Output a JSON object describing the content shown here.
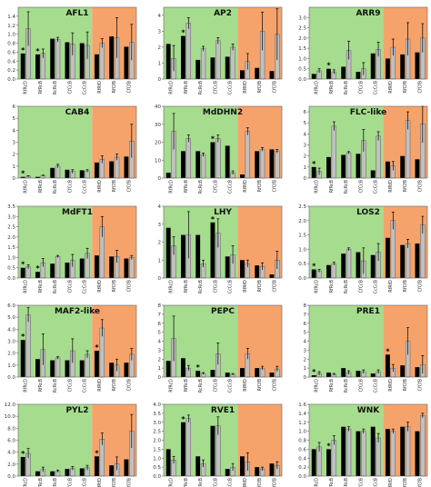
{
  "colors": {
    "bg_green": "#a6dc8e",
    "bg_orange": "#f6a36b",
    "bar_black": "#000000",
    "bar_gray": "#c0c0c0",
    "axis_text": "#333333",
    "title": "#111111"
  },
  "chart_data": [
    {
      "type": "bar",
      "title": "AFL1",
      "ylim": [
        0,
        1.6
      ],
      "yticks": [
        "0.0",
        "0.2",
        "0.4",
        "0.6",
        "0.8",
        "1.0",
        "1.2",
        "1.4"
      ],
      "categories": [
        "RfRcD",
        "RfRcB",
        "RcRcB",
        "CfCcB",
        "CcCcB",
        "RfRfD",
        "RfCfB",
        "CfCfB"
      ],
      "series": [
        {
          "values": [
            0.57,
            0.55,
            0.9,
            0.82,
            0.8,
            0.55,
            0.95,
            0.72
          ]
        },
        {
          "values": [
            1.12,
            0.57,
            0.88,
            0.78,
            0.75,
            0.8,
            0.92,
            0.82
          ]
        }
      ],
      "errors": [
        [
          0,
          0,
          0,
          0,
          0,
          0,
          0,
          0
        ],
        [
          0.38,
          0.1,
          0.05,
          0.25,
          0.3,
          0.1,
          0.45,
          0.4
        ]
      ],
      "marks": [
        "*",
        "*",
        "",
        "",
        "",
        "",
        "",
        ""
      ],
      "orange_from": 5
    },
    {
      "type": "bar",
      "title": "AP2",
      "ylim": [
        0,
        4.5
      ],
      "yticks": [
        "0",
        "1",
        "2",
        "3",
        "4"
      ],
      "categories": [
        "RfRcD",
        "RfRcB",
        "RcRcB",
        "CfCcB",
        "CcCcB",
        "RfRfD",
        "RfCfB",
        "CfCfB"
      ],
      "series": [
        {
          "values": [
            2.2,
            2.7,
            1.2,
            1.35,
            1.4,
            0.55,
            0.7,
            0.5
          ]
        },
        {
          "values": [
            1.3,
            3.5,
            1.9,
            2.4,
            2.0,
            1.1,
            3.0,
            2.8
          ]
        }
      ],
      "errors": [
        [
          0,
          0,
          0,
          0,
          0,
          0,
          0,
          0
        ],
        [
          0.8,
          0.35,
          0.15,
          0.2,
          0.2,
          0.5,
          1.2,
          1.6
        ]
      ],
      "marks": [
        "",
        "*",
        "",
        "",
        "",
        "",
        "",
        ""
      ],
      "orange_from": 5
    },
    {
      "type": "bar",
      "title": "ARR9",
      "ylim": [
        0,
        3.5
      ],
      "yticks": [
        "0.0",
        "0.5",
        "1.0",
        "1.5",
        "2.0",
        "2.5",
        "3.0"
      ],
      "categories": [
        "RfRcD",
        "RfRcB",
        "RcRcB",
        "CfCcB",
        "CcCcB",
        "RfRfD",
        "RfCfB",
        "CfCfB"
      ],
      "series": [
        {
          "values": [
            0.25,
            0.5,
            0.6,
            0.35,
            1.25,
            1.0,
            1.2,
            1.3
          ]
        },
        {
          "values": [
            0.4,
            0.35,
            1.4,
            0.5,
            1.45,
            1.55,
            1.95,
            2.0
          ]
        }
      ],
      "errors": [
        [
          0,
          0,
          0,
          0,
          0,
          0,
          0,
          0
        ],
        [
          0.1,
          0.1,
          0.45,
          0.3,
          0.35,
          0.4,
          0.8,
          0.7
        ]
      ],
      "marks": [
        "",
        "*",
        "",
        "",
        "",
        "",
        "",
        ""
      ],
      "orange_from": 5
    },
    {
      "type": "bar",
      "title": "CAB4",
      "ylim": [
        0,
        6
      ],
      "yticks": [
        "0",
        "1",
        "2",
        "3",
        "4",
        "5",
        "6"
      ],
      "categories": [
        "RfRcD",
        "RfRcB",
        "RcRcB",
        "CfCcB",
        "CcCcB",
        "RfRfD",
        "RfCfB",
        "CfCfB"
      ],
      "series": [
        {
          "values": [
            0.1,
            0.1,
            0.85,
            0.7,
            0.65,
            1.3,
            1.4,
            1.8
          ]
        },
        {
          "values": [
            0.15,
            0.2,
            1.0,
            0.55,
            0.6,
            1.55,
            1.75,
            3.1
          ]
        }
      ],
      "errors": [
        [
          0,
          0,
          0,
          0,
          0,
          0,
          0,
          0
        ],
        [
          0.05,
          0.05,
          0.15,
          0.15,
          0.1,
          0.3,
          0.25,
          1.4
        ]
      ],
      "marks": [
        "*",
        "",
        "",
        "",
        "",
        "",
        "",
        ""
      ],
      "orange_from": 5
    },
    {
      "type": "bar",
      "title": "MdDHN2",
      "ylim": [
        0,
        40
      ],
      "yticks": [
        "0",
        "10",
        "20",
        "30",
        "40"
      ],
      "categories": [
        "RfRcD",
        "RfRcB",
        "RcRcB",
        "CfCcB",
        "CcCcB",
        "RfRfD",
        "RfCfB",
        "CfCfB"
      ],
      "series": [
        {
          "values": [
            3.0,
            15.0,
            15.0,
            20.0,
            18.0,
            2.0,
            15.0,
            16.0
          ]
        },
        {
          "values": [
            26.0,
            22.0,
            13.0,
            22.0,
            3.0,
            26.0,
            16.0,
            15.0
          ]
        }
      ],
      "errors": [
        [
          0,
          0,
          0,
          0,
          0,
          0,
          0,
          0
        ],
        [
          10.0,
          2.0,
          1.0,
          2.0,
          1.0,
          2.0,
          1.0,
          1.0
        ]
      ],
      "marks": [
        "",
        "",
        "",
        "*",
        "",
        "",
        "",
        ""
      ],
      "orange_from": 5
    },
    {
      "type": "bar",
      "title": "FLC-like",
      "ylim": [
        0,
        6.5
      ],
      "yticks": [
        "0",
        "1",
        "2",
        "3",
        "4",
        "5",
        "6"
      ],
      "categories": [
        "RfRcD",
        "RfRcB",
        "RcRcB",
        "CfCcB",
        "CcCcB",
        "RfRfD",
        "RfCfB",
        "CfCfB"
      ],
      "series": [
        {
          "values": [
            1.0,
            1.9,
            2.1,
            2.2,
            0.7,
            1.5,
            2.0,
            1.7
          ]
        },
        {
          "values": [
            0.6,
            4.7,
            2.3,
            3.4,
            3.8,
            1.1,
            5.2,
            4.9
          ]
        }
      ],
      "errors": [
        [
          0,
          0,
          0,
          0,
          0,
          0,
          0,
          0
        ],
        [
          0.3,
          0.4,
          0.1,
          1.0,
          0.4,
          0.4,
          0.8,
          1.7
        ]
      ],
      "marks": [
        "*",
        "",
        "",
        "",
        "",
        "",
        "",
        ""
      ],
      "orange_from": 5
    },
    {
      "type": "bar",
      "title": "MdFT1",
      "ylim": [
        0,
        3.5
      ],
      "yticks": [
        "0.0",
        "0.5",
        "1.0",
        "1.5",
        "2.0",
        "2.5",
        "3.0",
        "3.5"
      ],
      "categories": [
        "RfRcD",
        "RfRcB",
        "RcRcB",
        "CfCcB",
        "CcCcB",
        "RfRfD",
        "RfCfB",
        "CfCfB"
      ],
      "series": [
        {
          "values": [
            0.5,
            0.3,
            0.7,
            0.75,
            0.95,
            1.1,
            1.05,
            0.95
          ]
        },
        {
          "values": [
            0.55,
            0.75,
            1.05,
            0.85,
            1.2,
            2.5,
            1.05,
            1.0
          ]
        }
      ],
      "errors": [
        [
          0,
          0,
          0,
          0,
          0,
          0,
          0,
          0
        ],
        [
          0.1,
          0.2,
          0.05,
          0.3,
          0.25,
          0.5,
          0.3,
          0.1
        ]
      ],
      "marks": [
        "*",
        "*",
        "",
        "",
        "",
        "",
        "",
        ""
      ],
      "orange_from": 5
    },
    {
      "type": "bar",
      "title": "LHY",
      "ylim": [
        0,
        4
      ],
      "yticks": [
        "0",
        "1",
        "2",
        "3",
        "4"
      ],
      "categories": [
        "RfRcD",
        "RfRcB",
        "RcRcB",
        "CfCcB",
        "CcCcB",
        "RfRfD",
        "RfCfB",
        "CfCfB"
      ],
      "series": [
        {
          "values": [
            2.8,
            2.4,
            2.4,
            3.1,
            1.2,
            1.0,
            0.7,
            0.2
          ]
        },
        {
          "values": [
            1.8,
            2.4,
            0.8,
            2.5,
            1.3,
            0.8,
            0.65,
            1.0
          ]
        }
      ],
      "errors": [
        [
          0,
          0,
          0,
          0,
          0,
          0,
          0,
          0
        ],
        [
          0.5,
          1.3,
          0.2,
          0.8,
          0.5,
          0.2,
          0.2,
          0.5
        ]
      ],
      "marks": [
        "",
        "",
        "",
        "*",
        "",
        "",
        "",
        ""
      ],
      "orange_from": 5
    },
    {
      "type": "bar",
      "title": "LOS2",
      "ylim": [
        0,
        2.5
      ],
      "yticks": [
        "0.0",
        "0.5",
        "1.0",
        "1.5",
        "2.0",
        "2.5"
      ],
      "categories": [
        "RfRcD",
        "RfRcB",
        "RcRcB",
        "CfCcB",
        "CcCcB",
        "RfRfD",
        "RfCfB",
        "CfCfB"
      ],
      "series": [
        {
          "values": [
            0.3,
            0.45,
            0.85,
            0.9,
            0.8,
            1.4,
            1.15,
            1.2
          ]
        },
        {
          "values": [
            0.25,
            0.5,
            1.0,
            0.6,
            0.9,
            2.0,
            1.2,
            1.85
          ]
        }
      ],
      "errors": [
        [
          0,
          0,
          0,
          0,
          0,
          0,
          0,
          0
        ],
        [
          0.05,
          0.05,
          0.05,
          0.45,
          0.3,
          0.3,
          0.15,
          0.3
        ]
      ],
      "marks": [
        "*",
        "",
        "",
        "",
        "",
        "",
        "",
        ""
      ],
      "orange_from": 5
    },
    {
      "type": "bar",
      "title": "MAF2-like",
      "ylim": [
        0,
        6
      ],
      "yticks": [
        "0.0",
        "1.0",
        "2.0",
        "3.0",
        "4.0",
        "5.0",
        "6.0"
      ],
      "categories": [
        "RfRcD",
        "RfRcB",
        "RcRcB",
        "CfCcB",
        "CcCcB",
        "RfRfD",
        "RfCfB",
        "CfCfB"
      ],
      "series": [
        {
          "values": [
            3.1,
            1.5,
            1.4,
            1.4,
            1.4,
            2.2,
            1.2,
            1.2
          ]
        },
        {
          "values": [
            5.2,
            2.3,
            1.6,
            2.2,
            1.9,
            4.1,
            1.0,
            1.9
          ]
        }
      ],
      "errors": [
        [
          0,
          0,
          0,
          0,
          0,
          0,
          0,
          0
        ],
        [
          0.6,
          1.3,
          0.1,
          1.0,
          0.3,
          0.7,
          0.5,
          0.5
        ]
      ],
      "marks": [
        "*",
        "",
        "",
        "",
        "",
        "*",
        "",
        ""
      ],
      "orange_from": 5
    },
    {
      "type": "bar",
      "title": "PEPC",
      "ylim": [
        0,
        8
      ],
      "yticks": [
        "0",
        "1",
        "2",
        "3",
        "4",
        "5",
        "6",
        "7",
        "8"
      ],
      "categories": [
        "RfRcD",
        "RfRcB",
        "RcRcB",
        "CfCcB",
        "CcCcB",
        "RfRfD",
        "RfCfB",
        "CfCfB"
      ],
      "series": [
        {
          "values": [
            1.8,
            2.1,
            0.7,
            0.8,
            0.5,
            1.0,
            1.0,
            0.5
          ]
        },
        {
          "values": [
            4.3,
            1.0,
            0.4,
            2.6,
            0.3,
            2.6,
            1.0,
            0.9
          ]
        }
      ],
      "errors": [
        [
          0,
          0,
          0,
          0,
          0,
          0,
          0,
          0
        ],
        [
          2.5,
          0.3,
          0.1,
          1.2,
          0.1,
          0.6,
          0.2,
          0.3
        ]
      ],
      "marks": [
        "",
        "",
        "*",
        "",
        "",
        "",
        "",
        ""
      ],
      "orange_from": 5
    },
    {
      "type": "bar",
      "title": "PRE1",
      "ylim": [
        0,
        8
      ],
      "yticks": [
        "0",
        "1",
        "2",
        "3",
        "4",
        "5",
        "6",
        "7",
        "8"
      ],
      "categories": [
        "RfRcD",
        "RfRcB",
        "RcRcB",
        "CfCcB",
        "CcCcB",
        "RfRfD",
        "RfCfB",
        "CfCfB"
      ],
      "series": [
        {
          "values": [
            0.2,
            0.5,
            1.0,
            0.7,
            0.4,
            2.5,
            1.3,
            1.1
          ]
        },
        {
          "values": [
            0.4,
            0.3,
            0.5,
            0.6,
            0.6,
            1.0,
            4.0,
            1.4
          ]
        }
      ],
      "errors": [
        [
          0,
          0,
          0,
          0,
          0,
          0,
          0,
          0
        ],
        [
          0.2,
          0.1,
          0.2,
          0.2,
          0.2,
          0.4,
          1.5,
          1.0
        ]
      ],
      "marks": [
        "*",
        "",
        "",
        "",
        "",
        "*",
        "",
        ""
      ],
      "orange_from": 5
    },
    {
      "type": "bar",
      "title": "PYL2",
      "ylim": [
        0,
        12
      ],
      "yticks": [
        "0.0",
        "2.0",
        "4.0",
        "6.0",
        "8.0",
        "10.0",
        "12.0"
      ],
      "categories": [
        "RfRcD",
        "RfRcB",
        "RcRcB",
        "CfCcB",
        "CcCcB",
        "RfRfD",
        "RfCfB",
        "CfCfB"
      ],
      "series": [
        {
          "values": [
            3.2,
            0.8,
            0.8,
            1.2,
            1.3,
            3.3,
            1.8,
            2.8
          ]
        },
        {
          "values": [
            3.8,
            1.1,
            0.8,
            1.3,
            1.4,
            6.2,
            2.1,
            7.5
          ]
        }
      ],
      "errors": [
        [
          0,
          0,
          0,
          0,
          0,
          0,
          0,
          0
        ],
        [
          0.8,
          0.4,
          0.2,
          0.3,
          0.4,
          1.0,
          1.1,
          2.8
        ]
      ],
      "marks": [
        "*",
        "",
        "",
        "",
        "",
        "*",
        "",
        ""
      ],
      "orange_from": 5
    },
    {
      "type": "bar",
      "title": "RVE1",
      "ylim": [
        0,
        4
      ],
      "yticks": [
        "0.0",
        "0.5",
        "1.0",
        "1.5",
        "2.0",
        "2.5",
        "3.0",
        "3.5",
        "4.0"
      ],
      "categories": [
        "RfRcD",
        "RfRcB",
        "RcRcB",
        "CfCcB",
        "CcCcB",
        "RfRfD",
        "RfCfB",
        "CfCfB"
      ],
      "series": [
        {
          "values": [
            1.5,
            3.0,
            1.1,
            2.8,
            0.4,
            1.1,
            0.5,
            0.7
          ]
        },
        {
          "values": [
            0.9,
            3.2,
            0.7,
            2.8,
            0.5,
            0.8,
            0.4,
            0.6
          ]
        }
      ],
      "errors": [
        [
          0,
          0,
          0,
          0,
          0,
          0,
          0,
          0
        ],
        [
          0.2,
          0.2,
          0.2,
          0.5,
          0.2,
          0.5,
          0.1,
          0.2
        ]
      ],
      "marks": [
        "",
        "*",
        "",
        "",
        "",
        "",
        "",
        ""
      ],
      "orange_from": 5
    },
    {
      "type": "bar",
      "title": "WNK",
      "ylim": [
        0,
        1.6
      ],
      "yticks": [
        "0.0",
        "0.2",
        "0.4",
        "0.6",
        "0.8",
        "1.0",
        "1.2",
        "1.4",
        "1.6"
      ],
      "categories": [
        "RfRcD",
        "RfRcB",
        "RcRcB",
        "CfCcB",
        "CcCcB",
        "RfRfD",
        "RfCfB",
        "CfCfB"
      ],
      "series": [
        {
          "values": [
            0.6,
            0.6,
            1.1,
            1.0,
            1.1,
            1.05,
            1.1,
            1.0
          ]
        },
        {
          "values": [
            0.65,
            0.8,
            1.05,
            1.0,
            0.85,
            1.0,
            1.1,
            1.35
          ]
        }
      ],
      "errors": [
        [
          0,
          0,
          0,
          0,
          0,
          0,
          0,
          0
        ],
        [
          0.1,
          0.1,
          0.05,
          0.05,
          0.1,
          0.05,
          0.1,
          0.05
        ]
      ],
      "marks": [
        "",
        "*",
        "",
        "",
        "",
        "",
        "",
        ""
      ],
      "orange_from": 5
    }
  ]
}
